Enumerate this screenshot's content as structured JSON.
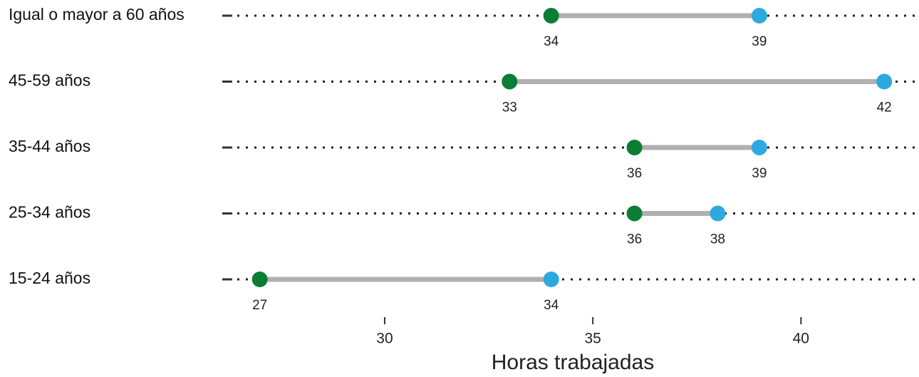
{
  "chart_data": {
    "type": "dumbbell",
    "categories": [
      "Igual o mayor a 60 años",
      "45-59 años",
      "35-44 años",
      "25-34 años",
      "15-24 años"
    ],
    "series": [
      {
        "color": "#0b7d34",
        "values": [
          34,
          33,
          36,
          36,
          27
        ]
      },
      {
        "color": "#2ea9df",
        "values": [
          39,
          42,
          39,
          38,
          34
        ]
      }
    ],
    "xlabel": "Horas trabajadas",
    "xlim": [
      26.15,
      42.75
    ],
    "xticks": [
      30,
      35,
      40
    ],
    "connector_color": "#b0b0b0"
  }
}
